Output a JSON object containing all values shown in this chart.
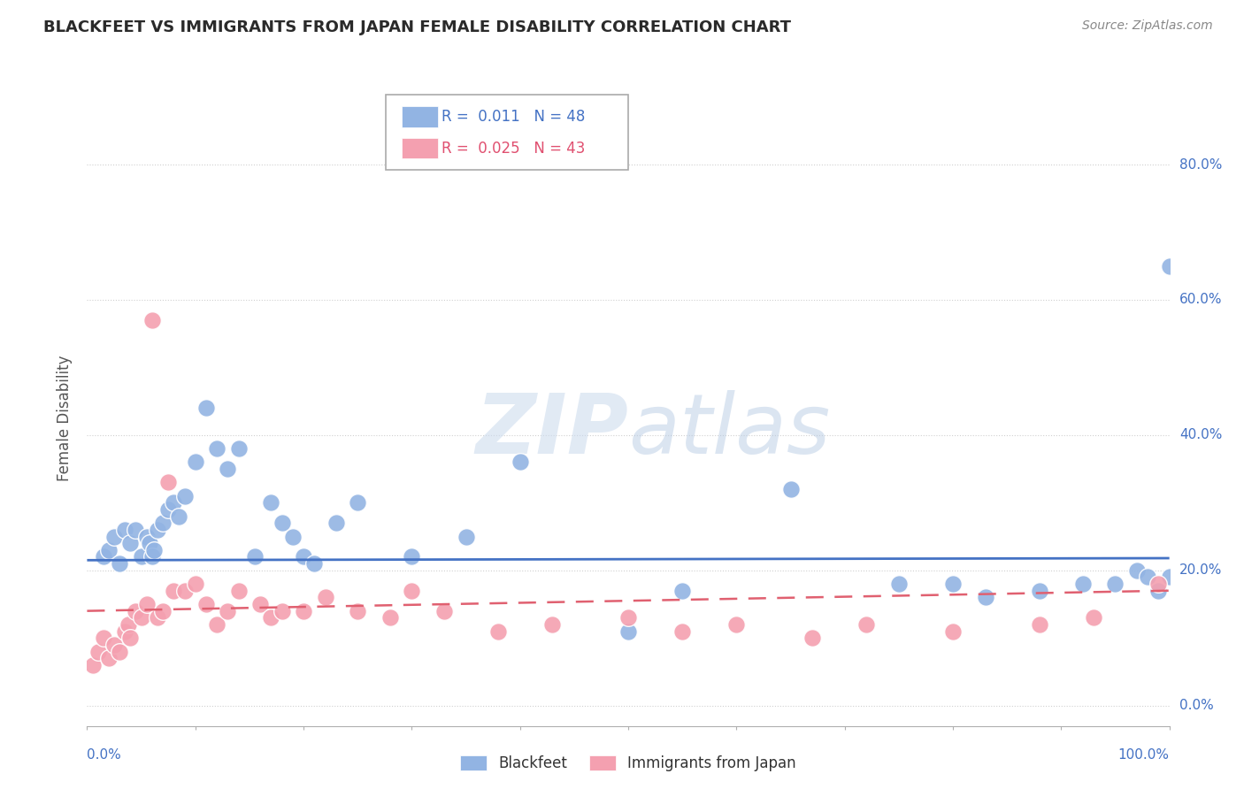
{
  "title": "BLACKFEET VS IMMIGRANTS FROM JAPAN FEMALE DISABILITY CORRELATION CHART",
  "source": "Source: ZipAtlas.com",
  "ylabel": "Female Disability",
  "xlim": [
    0,
    100
  ],
  "ylim": [
    -3,
    88
  ],
  "yticks": [
    0,
    20,
    40,
    60,
    80
  ],
  "ytick_labels": [
    "0.0%",
    "20.0%",
    "40.0%",
    "60.0%",
    "80.0%"
  ],
  "blackfeet_color": "#92b4e3",
  "japan_color": "#f4a0b0",
  "trendline_blue": "#4472c4",
  "trendline_pink": "#e06070",
  "blackfeet_x": [
    1.5,
    2.0,
    2.5,
    3.0,
    3.5,
    4.0,
    4.5,
    5.0,
    5.5,
    5.8,
    6.0,
    6.2,
    6.5,
    7.0,
    7.5,
    8.0,
    8.5,
    9.0,
    10.0,
    11.0,
    12.0,
    13.0,
    14.0,
    15.5,
    17.0,
    18.0,
    19.0,
    20.0,
    21.0,
    23.0,
    25.0,
    30.0,
    35.0,
    40.0,
    50.0,
    55.0,
    65.0,
    75.0,
    80.0,
    83.0,
    88.0,
    92.0,
    95.0,
    97.0,
    98.0,
    99.0,
    100.0,
    100.0
  ],
  "blackfeet_y": [
    22.0,
    23.0,
    25.0,
    21.0,
    26.0,
    24.0,
    26.0,
    22.0,
    25.0,
    24.0,
    22.0,
    23.0,
    26.0,
    27.0,
    29.0,
    30.0,
    28.0,
    31.0,
    36.0,
    44.0,
    38.0,
    35.0,
    38.0,
    22.0,
    30.0,
    27.0,
    25.0,
    22.0,
    21.0,
    27.0,
    30.0,
    22.0,
    25.0,
    36.0,
    11.0,
    17.0,
    32.0,
    18.0,
    18.0,
    16.0,
    17.0,
    18.0,
    18.0,
    20.0,
    19.0,
    17.0,
    19.0,
    65.0
  ],
  "japan_x": [
    0.5,
    1.0,
    1.5,
    2.0,
    2.5,
    3.0,
    3.5,
    3.8,
    4.0,
    4.5,
    5.0,
    5.5,
    6.0,
    6.5,
    7.0,
    7.5,
    8.0,
    9.0,
    10.0,
    11.0,
    12.0,
    13.0,
    14.0,
    16.0,
    17.0,
    18.0,
    20.0,
    22.0,
    25.0,
    28.0,
    30.0,
    33.0,
    38.0,
    43.0,
    50.0,
    55.0,
    60.0,
    67.0,
    72.0,
    80.0,
    88.0,
    93.0,
    99.0
  ],
  "japan_y": [
    6.0,
    8.0,
    10.0,
    7.0,
    9.0,
    8.0,
    11.0,
    12.0,
    10.0,
    14.0,
    13.0,
    15.0,
    57.0,
    13.0,
    14.0,
    33.0,
    17.0,
    17.0,
    18.0,
    15.0,
    12.0,
    14.0,
    17.0,
    15.0,
    13.0,
    14.0,
    14.0,
    16.0,
    14.0,
    13.0,
    17.0,
    14.0,
    11.0,
    12.0,
    13.0,
    11.0,
    12.0,
    10.0,
    12.0,
    11.0,
    12.0,
    13.0,
    18.0
  ]
}
